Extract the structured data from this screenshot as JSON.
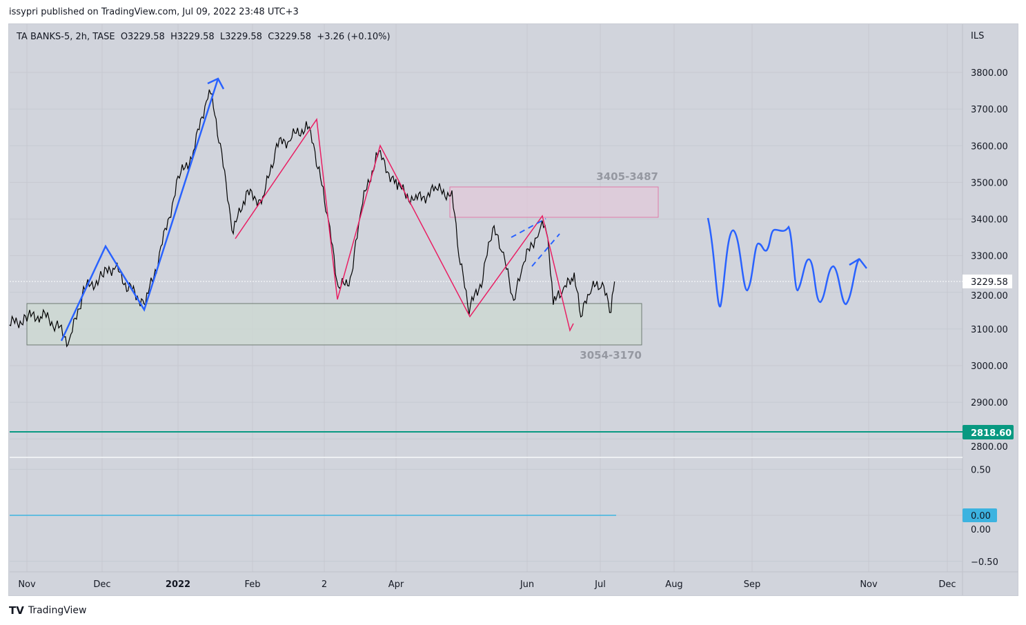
{
  "header": {
    "published": "issypri published on TradingView.com, Jul 09, 2022 23:48 UTC+3"
  },
  "legend": {
    "symbol": "TA BANKS-5, 2h, TASE",
    "open": "O3229.58",
    "high": "H3229.58",
    "low": "L3229.58",
    "close": "C3229.58",
    "change": "+3.26 (+0.10%)"
  },
  "footer": {
    "brand": "TradingView"
  },
  "colors": {
    "bg": "#d1d4dc",
    "price": "#000000",
    "blue_drawing": "#2962ff",
    "pink_drawing": "#e91e63",
    "support_line": "#089981",
    "last_price_label": "#ffffff",
    "indicator": "#3cb3e0"
  },
  "chart_data": {
    "type": "line",
    "title": "TA BANKS-5, 2h, TASE",
    "currency": "ILS",
    "x_unit": "days since 2021-11-01",
    "x_ticks": [
      {
        "label": "Nov",
        "day": 0
      },
      {
        "label": "Dec",
        "day": 30
      },
      {
        "label": "2022",
        "day": 61
      },
      {
        "label": "Feb",
        "day": 92
      },
      {
        "label": "2",
        "day": 120
      },
      {
        "label": "Apr",
        "day": 151
      },
      {
        "label": "Jun",
        "day": 212
      },
      {
        "label": "Jul",
        "day": 242
      },
      {
        "label": "Aug",
        "day": 273
      },
      {
        "label": "Sep",
        "day": 304
      },
      {
        "label": "Nov",
        "day": 365
      },
      {
        "label": "Dec",
        "day": 395
      }
    ],
    "y_ticks": [
      "3800.00",
      "3700.00",
      "3600.00",
      "3500.00",
      "3400.00",
      "3300.00",
      "3200.00",
      "3100.00",
      "3000.00",
      "2900.00",
      "2800.00"
    ],
    "ylim": [
      2790,
      3900
    ],
    "series": [
      {
        "name": "TA BANKS-5 close",
        "x": [
          -7,
          0,
          6,
          11.6,
          17,
          22.6,
          30,
          35,
          40.6,
          47.7,
          53.4,
          61,
          67.4,
          74,
          78,
          84,
          89.4,
          96,
          101.4,
          106.8,
          113.5,
          117.5,
          121.8,
          126,
          131.8,
          136,
          143,
          151.6,
          159.6,
          169.2,
          177,
          180.2,
          185,
          191.4,
          196,
          201,
          205.7,
          210.5,
          217,
          219.9,
          222.7,
          227,
          231.3,
          234,
          238,
          242.3,
          246.5,
          248
        ],
        "y": [
          3111,
          3130,
          3139,
          3111,
          3064,
          3205,
          3243,
          3271,
          3215,
          3168,
          3300,
          3506,
          3582,
          3760,
          3619,
          3365,
          3469,
          3450,
          3600,
          3619,
          3657,
          3544,
          3393,
          3205,
          3243,
          3431,
          3582,
          3488,
          3450,
          3478,
          3469,
          3300,
          3149,
          3243,
          3375,
          3300,
          3168,
          3281,
          3375,
          3375,
          3168,
          3205,
          3243,
          3130,
          3205,
          3224,
          3149,
          3229.58
        ]
      }
    ],
    "last_price": "3229.58",
    "support_level": "2818.60",
    "zones": [
      {
        "label": "3405-3487",
        "low": 3405,
        "high": 3487
      },
      {
        "label": "3054-3170",
        "low": 3054,
        "high": 3170
      }
    ],
    "indicator": {
      "y_ticks": [
        "0.50",
        "0.00",
        "−0.50"
      ],
      "value": "0.00",
      "ylim": [
        -0.6,
        0.6
      ]
    }
  }
}
